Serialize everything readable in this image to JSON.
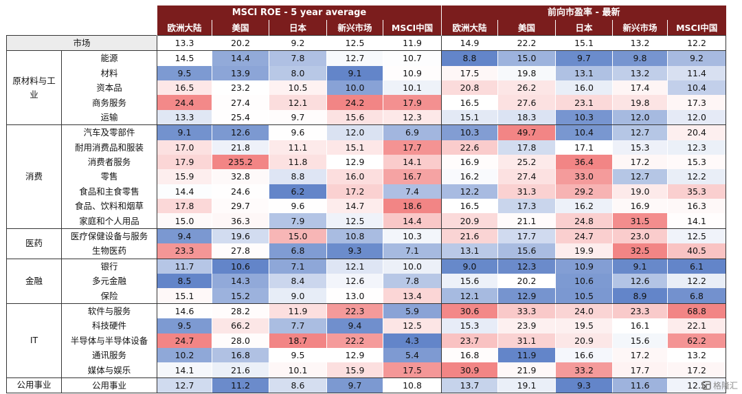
{
  "chart_data": {
    "type": "heatmap",
    "groups": [
      {
        "title": "MSCI ROE - 5 year average",
        "columns": [
          "欧洲大陆",
          "美国",
          "日本",
          "新兴市场",
          "MSCI中国"
        ]
      },
      {
        "title": "前向市盈率 - 最新",
        "columns": [
          "欧洲大陆",
          "美国",
          "日本",
          "新兴市场",
          "MSCI中国"
        ]
      }
    ],
    "market_row": {
      "label": "市场",
      "values": [
        13.3,
        20.2,
        9.2,
        12.5,
        11.9,
        14.9,
        22.2,
        15.1,
        13.2,
        12.2
      ]
    },
    "sectors": [
      {
        "name": "原材料与工业",
        "rows": [
          {
            "label": "能源",
            "values": [
              14.5,
              14.4,
              7.8,
              12.7,
              10.7,
              8.8,
              15.0,
              9.7,
              9.8,
              9.2
            ]
          },
          {
            "label": "材料",
            "values": [
              9.5,
              13.9,
              8.0,
              9.1,
              10.9,
              17.5,
              19.8,
              13.1,
              13.2,
              11.4
            ]
          },
          {
            "label": "资本品",
            "values": [
              16.5,
              23.2,
              10.5,
              10.0,
              10.1,
              20.8,
              26.2,
              16.0,
              17.4,
              10.4
            ]
          },
          {
            "label": "商务服务",
            "values": [
              24.4,
              27.4,
              12.1,
              24.2,
              17.9,
              16.5,
              27.6,
              23.1,
              19.8,
              17.3
            ]
          },
          {
            "label": "运输",
            "values": [
              13.3,
              25.4,
              9.7,
              15.6,
              12.3,
              15.1,
              18.3,
              10.3,
              12.0,
              12.0
            ]
          }
        ]
      },
      {
        "name": "消费",
        "rows": [
          {
            "label": "汽车及零部件",
            "values": [
              9.1,
              12.6,
              9.6,
              12.0,
              6.9,
              10.3,
              49.7,
              10.4,
              12.7,
              20.4
            ]
          },
          {
            "label": "耐用消费品和服装",
            "values": [
              17.0,
              21.8,
              11.1,
              15.1,
              17.7,
              22.6,
              17.8,
              17.1,
              15.3,
              12.3
            ]
          },
          {
            "label": "消费者服务",
            "values": [
              17.9,
              235.2,
              11.8,
              12.9,
              14.1,
              16.9,
              25.2,
              36.4,
              17.2,
              15.3
            ]
          },
          {
            "label": "零售",
            "values": [
              15.9,
              32.8,
              8.8,
              16.0,
              16.7,
              16.2,
              27.4,
              33.0,
              12.7,
              12.2
            ]
          },
          {
            "label": "食品和主食零售",
            "values": [
              14.4,
              24.6,
              6.2,
              17.2,
              7.4,
              12.2,
              31.3,
              29.2,
              19.0,
              35.3
            ]
          },
          {
            "label": "食品、饮料和烟草",
            "values": [
              17.8,
              29.7,
              9.6,
              14.7,
              18.6,
              16.5,
              17.3,
              16.2,
              16.9,
              16.3
            ]
          },
          {
            "label": "家庭和个人用品",
            "values": [
              15.0,
              36.3,
              7.9,
              12.5,
              14.4,
              20.9,
              21.1,
              24.8,
              31.5,
              14.1
            ]
          }
        ]
      },
      {
        "name": "医药",
        "rows": [
          {
            "label": "医疗保健设备与服务",
            "values": [
              9.4,
              19.6,
              15.0,
              10.8,
              10.3,
              21.6,
              17.7,
              24.7,
              23.0,
              12.5
            ]
          },
          {
            "label": "生物医药",
            "values": [
              23.3,
              27.8,
              6.8,
              9.3,
              7.1,
              13.1,
              15.6,
              19.9,
              32.5,
              40.5
            ]
          }
        ]
      },
      {
        "name": "金融",
        "rows": [
          {
            "label": "银行",
            "values": [
              11.7,
              10.6,
              7.1,
              12.1,
              10.0,
              9.0,
              12.3,
              10.9,
              9.1,
              6.1
            ]
          },
          {
            "label": "多元金融",
            "values": [
              8.5,
              14.3,
              8.4,
              12.6,
              7.8,
              15.6,
              20.2,
              10.6,
              12.6,
              12.2
            ]
          },
          {
            "label": "保险",
            "values": [
              15.1,
              15.2,
              9.0,
              13.0,
              13.4,
              12.1,
              12.9,
              10.5,
              8.9,
              6.8
            ]
          }
        ]
      },
      {
        "name": "IT",
        "rows": [
          {
            "label": "软件与服务",
            "values": [
              14.6,
              28.2,
              11.9,
              22.3,
              5.9,
              30.6,
              33.3,
              24.0,
              23.3,
              68.8
            ]
          },
          {
            "label": "科技硬件",
            "values": [
              9.5,
              66.2,
              7.7,
              9.4,
              12.5,
              15.3,
              23.9,
              19.5,
              16.1,
              22.1
            ]
          },
          {
            "label": "半导体与半导体设备",
            "values": [
              24.7,
              28.0,
              18.7,
              22.2,
              4.3,
              23.7,
              31.1,
              20.9,
              15.6,
              62.2
            ]
          },
          {
            "label": "通讯服务",
            "values": [
              10.2,
              16.8,
              9.5,
              12.9,
              5.4,
              16.8,
              11.9,
              16.6,
              17.2,
              13.2
            ]
          },
          {
            "label": "媒体与娱乐",
            "values": [
              14.1,
              21.6,
              10.1,
              15.9,
              17.5,
              30.9,
              21.9,
              33.2,
              17.7,
              17.2
            ]
          }
        ]
      },
      {
        "name": "公用事业",
        "rows": [
          {
            "label": "公用事业",
            "values": [
              12.7,
              11.2,
              8.6,
              9.7,
              10.8,
              13.7,
              19.1,
              9.3,
              11.6,
              12.5
            ]
          }
        ]
      }
    ],
    "colors": {
      "low": "#5b7fc6",
      "mid": "#ffffff",
      "high": "#f07070",
      "header_bg": "#7b1d1d"
    }
  },
  "watermark": {
    "text": "格隆汇"
  }
}
